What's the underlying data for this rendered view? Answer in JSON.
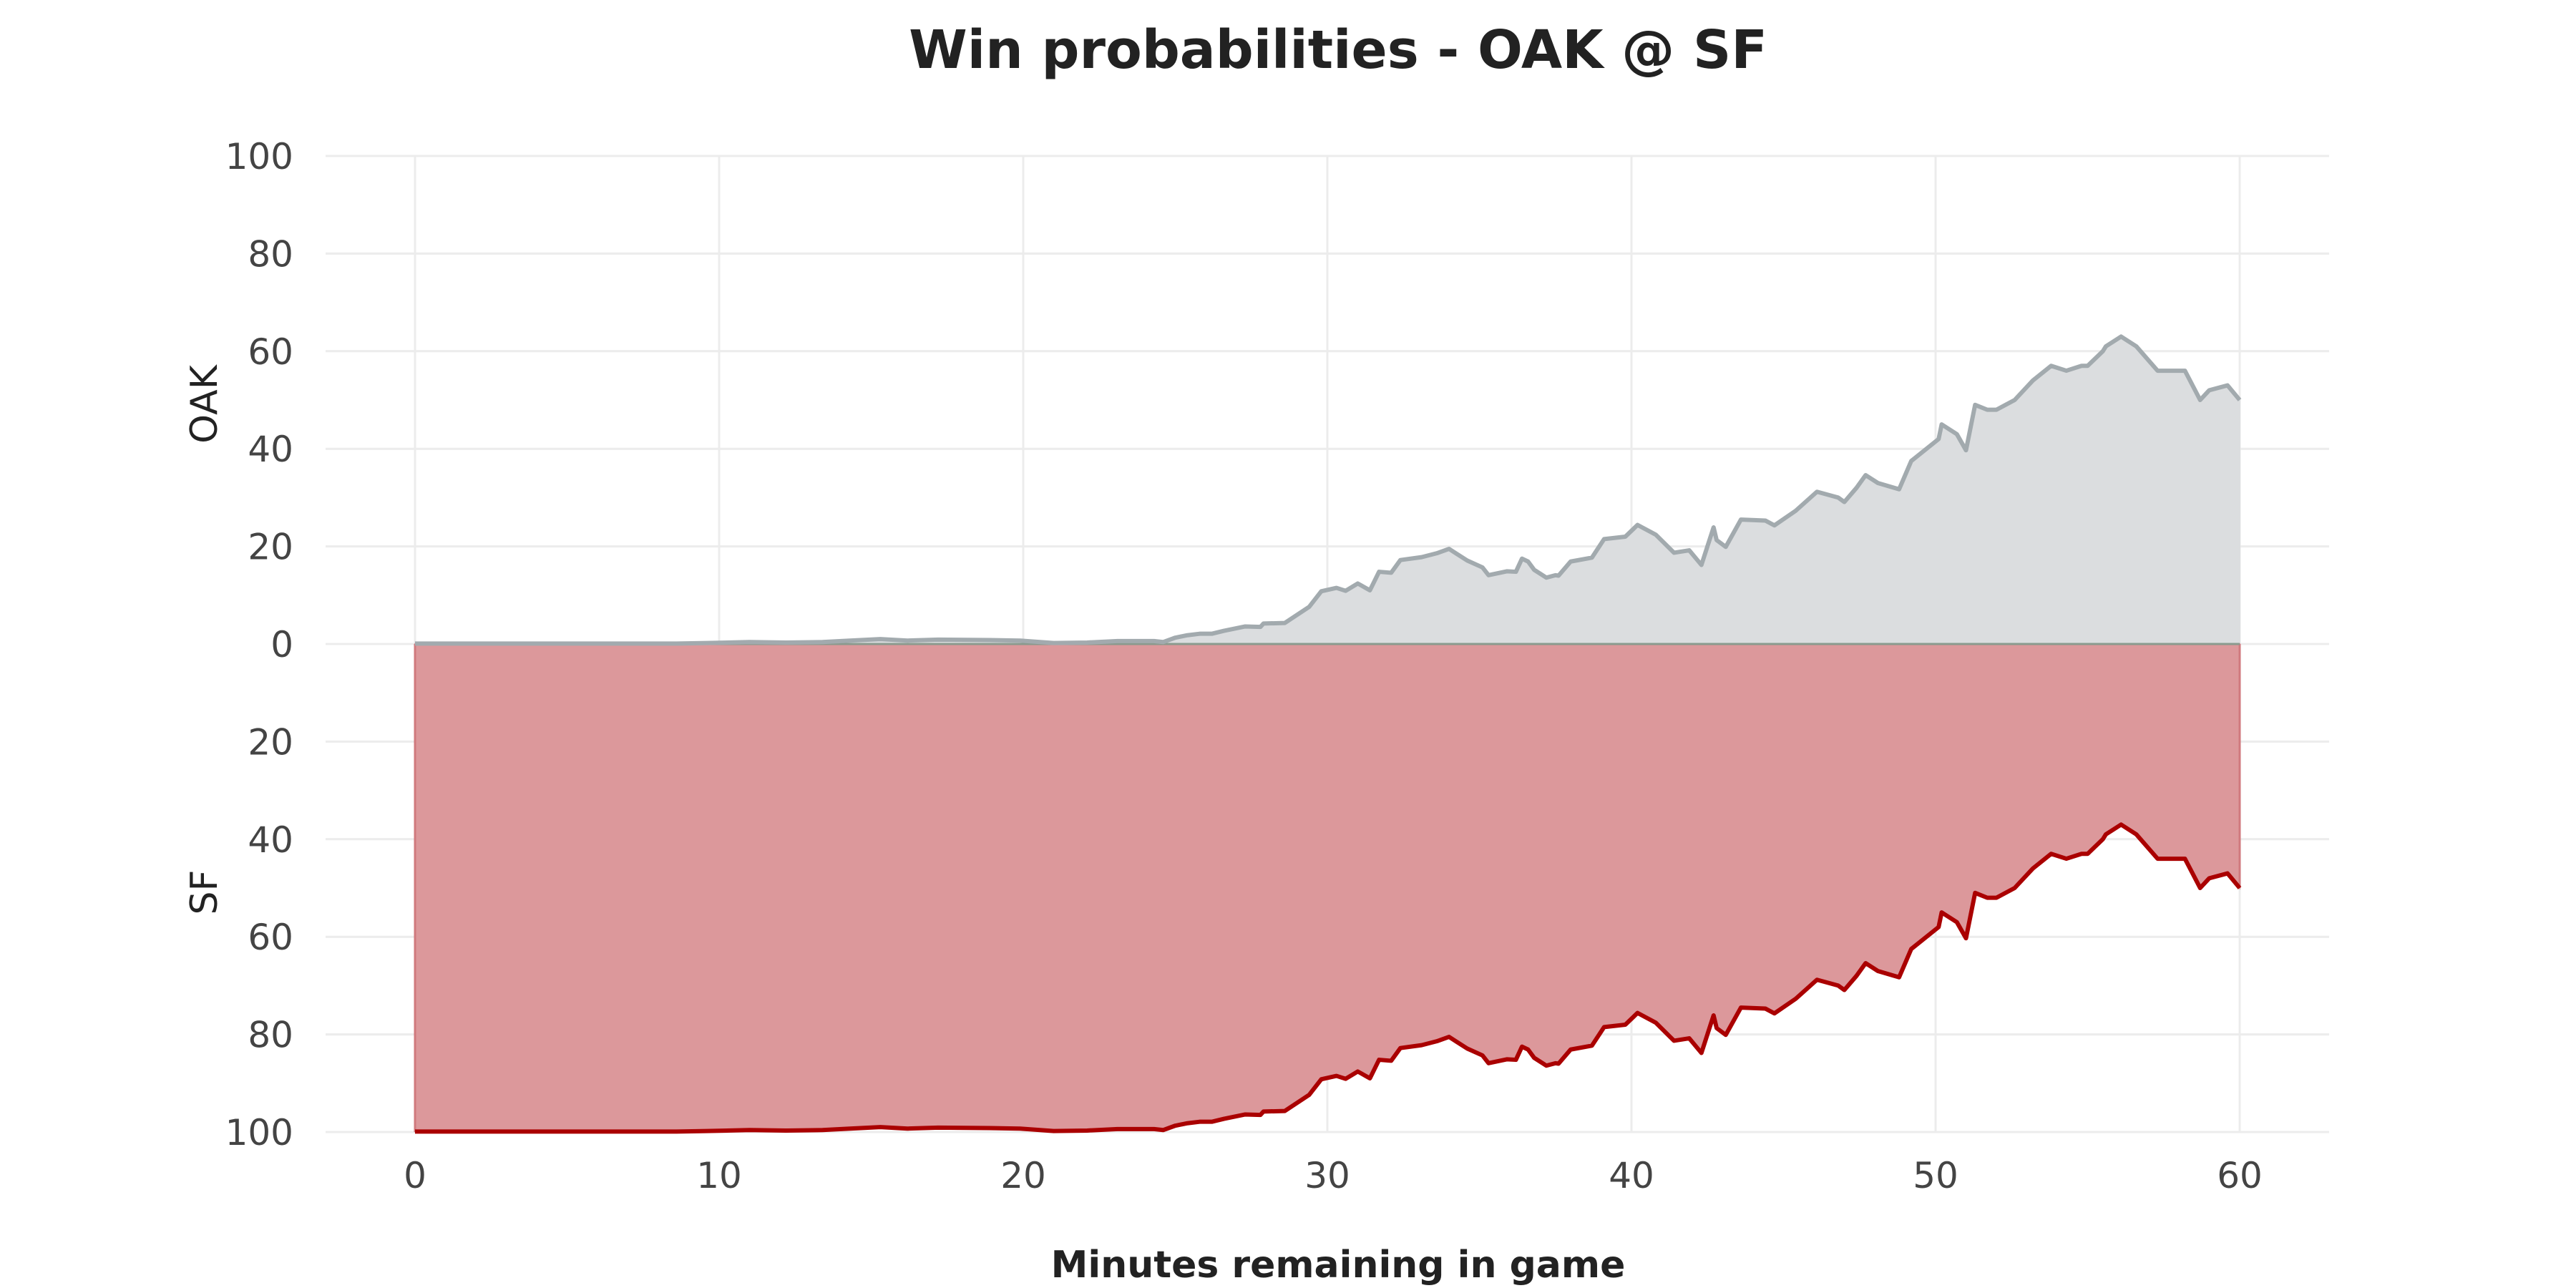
{
  "chart_data": {
    "type": "area",
    "title": "Win probabilities - OAK @ SF",
    "xlabel": "Minutes remaining in game",
    "xlim": [
      60,
      0
    ],
    "ylim": [
      0,
      100
    ],
    "x_ticks": [
      60,
      50,
      40,
      30,
      20,
      10,
      0
    ],
    "top_y_ticks": [
      100,
      80,
      60,
      40,
      20,
      0
    ],
    "bottom_y_ticks": [
      20,
      40,
      60,
      80,
      100
    ],
    "grid": true,
    "series": [
      {
        "name": "OAK",
        "color_line": "#a2aaae",
        "color_fill": "#dbdddf",
        "x": [
          60,
          59.6,
          59,
          58.7,
          58.2,
          57.7,
          57.3,
          56.6,
          56.1,
          55.6,
          55.5,
          55,
          54.8,
          54.3,
          53.8,
          53.2,
          52.6,
          52,
          51.9,
          51.7,
          51.3,
          51.0,
          50.7,
          50.2,
          50.1,
          49.2,
          48.8,
          48.1,
          47.7,
          47.4,
          47.0,
          46.8,
          46.1,
          45.4,
          44.7,
          44.4,
          43.6,
          43.1,
          42.8,
          42.7,
          42.3,
          41.9,
          41.4,
          40.8,
          40.2,
          39.8,
          39.1,
          38.7,
          38.0,
          37.6,
          37.5,
          37.2,
          36.8,
          36.6,
          36.4,
          36.2,
          35.9,
          35.3,
          35.1,
          34.6,
          34.0,
          33.6,
          33.1,
          32.4,
          32.1,
          31.7,
          31.4,
          31.0,
          30.6,
          30.5,
          30.3,
          29.8,
          29.4,
          28.6,
          27.9,
          27.8,
          27.3,
          26.6,
          26.2,
          25.8,
          25.4,
          25.0,
          24.6,
          24.3,
          23.1,
          22.1,
          21.0,
          19.9,
          18.9,
          17.2,
          16.2,
          15.3,
          14.3,
          13.4,
          12.2,
          11.0,
          9.6,
          8.6,
          7.2,
          5.8,
          4.3,
          2.8,
          1.4,
          0
        ],
        "values": [
          50,
          53,
          52,
          50,
          56,
          56,
          56,
          61,
          63,
          61,
          60,
          57,
          57,
          56,
          57,
          54,
          50,
          48,
          48,
          48,
          49,
          39.7,
          43,
          45,
          42,
          37.5,
          31.7,
          33,
          34.6,
          32,
          29.1,
          30,
          31.2,
          27.3,
          24.3,
          25.3,
          25.5,
          19.9,
          21.3,
          23.9,
          16.2,
          19.2,
          18.7,
          22.4,
          24.4,
          22.0,
          21.5,
          17.7,
          16.9,
          14.0,
          14.1,
          13.6,
          15.2,
          16.9,
          17.5,
          14.8,
          14.9,
          14.1,
          15.7,
          17.1,
          19.5,
          18.6,
          17.8,
          17.2,
          14.6,
          14.8,
          11.0,
          12.4,
          10.9,
          11.1,
          11.5,
          10.8,
          7.6,
          4.3,
          4.2,
          3.5,
          3.6,
          2.7,
          2.1,
          2.1,
          1.8,
          1.3,
          0.4,
          0.6,
          0.6,
          0.3,
          0.2,
          0.7,
          0.8,
          0.9,
          0.7,
          1.0,
          0.7,
          0.4,
          0.3,
          0.4,
          0.2,
          0.1,
          0.1,
          0.1,
          0.1,
          0.1,
          0.1,
          0.1
        ]
      },
      {
        "name": "SF",
        "color_line": "#aa0000",
        "color_fill": "#dc989b",
        "x": [
          60,
          59.6,
          59,
          58.7,
          58.2,
          57.7,
          57.3,
          56.6,
          56.1,
          55.6,
          55.5,
          55,
          54.8,
          54.3,
          53.8,
          53.2,
          52.6,
          52,
          51.9,
          51.7,
          51.3,
          51.0,
          50.7,
          50.2,
          50.1,
          49.2,
          48.8,
          48.1,
          47.7,
          47.4,
          47.0,
          46.8,
          46.1,
          45.4,
          44.7,
          44.4,
          43.6,
          43.1,
          42.8,
          42.7,
          42.3,
          41.9,
          41.4,
          40.8,
          40.2,
          39.8,
          39.1,
          38.7,
          38.0,
          37.6,
          37.5,
          37.2,
          36.8,
          36.6,
          36.4,
          36.2,
          35.9,
          35.3,
          35.1,
          34.6,
          34.0,
          33.6,
          33.1,
          32.4,
          32.1,
          31.7,
          31.4,
          31.0,
          30.6,
          30.5,
          30.3,
          29.8,
          29.4,
          28.6,
          27.9,
          27.8,
          27.3,
          26.6,
          26.2,
          25.8,
          25.4,
          25.0,
          24.6,
          24.3,
          23.1,
          22.1,
          21.0,
          19.9,
          18.9,
          17.2,
          16.2,
          15.3,
          14.3,
          13.4,
          12.2,
          11.0,
          9.6,
          8.6,
          7.2,
          5.8,
          4.3,
          2.8,
          1.4,
          0
        ],
        "values": [
          50,
          47,
          48,
          50,
          44,
          44,
          44,
          39,
          37,
          39,
          40,
          43,
          43,
          44,
          43,
          46,
          50,
          52,
          52,
          52,
          51,
          60.3,
          57,
          55,
          58,
          62.5,
          68.3,
          67,
          65.4,
          68,
          70.9,
          70,
          68.8,
          72.7,
          75.7,
          74.7,
          74.5,
          80.1,
          78.7,
          76.1,
          83.8,
          80.8,
          81.3,
          77.6,
          75.6,
          78.0,
          78.5,
          82.3,
          83.1,
          86.0,
          85.9,
          86.4,
          84.8,
          83.1,
          82.5,
          85.2,
          85.1,
          85.9,
          84.3,
          82.9,
          80.5,
          81.4,
          82.2,
          82.8,
          85.4,
          85.2,
          89.0,
          87.6,
          89.1,
          88.9,
          88.5,
          89.2,
          92.4,
          95.7,
          95.8,
          96.5,
          96.4,
          97.3,
          97.9,
          97.9,
          98.2,
          98.7,
          99.6,
          99.4,
          99.4,
          99.7,
          99.8,
          99.3,
          99.2,
          99.1,
          99.3,
          99.0,
          99.3,
          99.6,
          99.7,
          99.6,
          99.8,
          99.9,
          99.9,
          99.9,
          99.9,
          99.9,
          99.9,
          99.9
        ]
      }
    ]
  }
}
